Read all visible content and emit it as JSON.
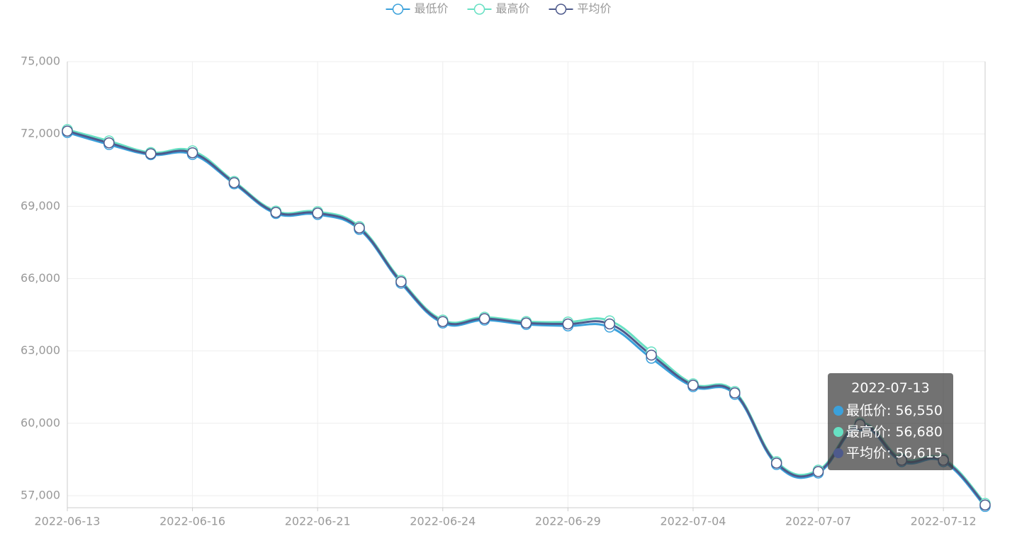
{
  "chart_data": {
    "type": "line",
    "categories": [
      "2022-06-13",
      null,
      null,
      "2022-06-16",
      null,
      null,
      "2022-06-21",
      null,
      null,
      "2022-06-24",
      null,
      null,
      "2022-06-29",
      null,
      null,
      "2022-07-04",
      null,
      null,
      "2022-07-07",
      null,
      null,
      "2022-07-12",
      null
    ],
    "series": [
      {
        "name": "最低价",
        "color": "#3ba1db",
        "values": [
          72060,
          71560,
          71140,
          71150,
          69930,
          68700,
          68660,
          68040,
          65810,
          64160,
          64280,
          64100,
          64040,
          63990,
          62700,
          61520,
          61200,
          58290,
          57940,
          59890,
          58410,
          58410,
          56550
        ]
      },
      {
        "name": "最高价",
        "color": "#67e0c3",
        "values": [
          72180,
          71710,
          71230,
          71300,
          70030,
          68800,
          68780,
          68160,
          65930,
          64280,
          64400,
          64220,
          64200,
          64250,
          62960,
          61640,
          61320,
          58410,
          58060,
          60010,
          58530,
          58530,
          56680
        ]
      },
      {
        "name": "平均价",
        "color": "#4e5a8c",
        "values": [
          72120,
          71630,
          71180,
          71220,
          69980,
          68750,
          68720,
          68100,
          65870,
          64220,
          64340,
          64160,
          64120,
          64120,
          62830,
          61580,
          61260,
          58350,
          58000,
          59950,
          58470,
          58470,
          56615
        ]
      }
    ],
    "ylim": [
      56500,
      75000
    ],
    "yticks": [
      {
        "value": 57000,
        "label": "57,000"
      },
      {
        "value": 60000,
        "label": "60,000"
      },
      {
        "value": 63000,
        "label": "63,000"
      },
      {
        "value": 66000,
        "label": "66,000"
      },
      {
        "value": 69000,
        "label": "69,000"
      },
      {
        "value": 72000,
        "label": "72,000"
      },
      {
        "value": 75000,
        "label": "75,000"
      }
    ],
    "grid": true,
    "legend": "top",
    "tooltip": {
      "title": "2022-07-13",
      "labels": [
        "56,550",
        "56,680",
        "56,615"
      ]
    }
  }
}
